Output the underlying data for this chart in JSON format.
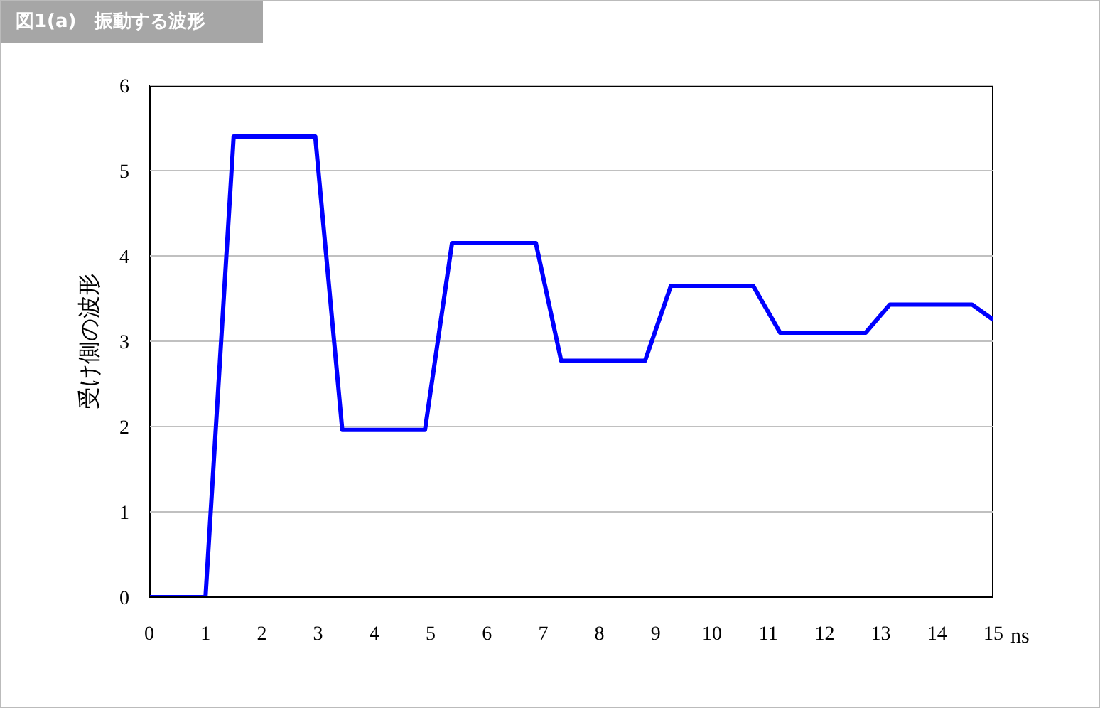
{
  "chart_data": {
    "type": "line",
    "title": "図1(a)　振動する波形",
    "xlabel": "ns",
    "ylabel": "受け側の波形",
    "x": [
      0,
      1,
      1.5,
      2.95,
      3.43,
      4.9,
      5.38,
      6.87,
      7.32,
      8.81,
      9.27,
      10.73,
      11.21,
      12.73,
      13.16,
      14.62,
      15
    ],
    "series": [
      {
        "color": "#0000ff",
        "values": [
          0,
          0,
          5.4,
          5.4,
          1.96,
          1.96,
          4.15,
          4.15,
          2.77,
          2.77,
          3.65,
          3.65,
          3.1,
          3.1,
          3.43,
          3.43,
          3.25
        ]
      }
    ],
    "xlim": [
      0,
      15
    ],
    "xticks": [
      0,
      1,
      2,
      3,
      4,
      5,
      6,
      7,
      8,
      9,
      10,
      11,
      12,
      13,
      14,
      15
    ],
    "ylim": [
      0,
      6
    ],
    "yticks": [
      0,
      1,
      2,
      3,
      4,
      5,
      6
    ],
    "grid": "y",
    "marker": "none",
    "line_style": "solid"
  }
}
